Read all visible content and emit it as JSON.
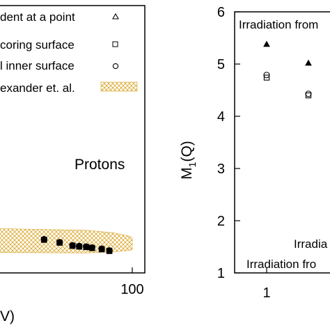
{
  "chart_data": [
    {
      "type": "scatter",
      "title": "",
      "xlabel": "V)",
      "ylabel": "",
      "annotation": "Protons",
      "xticks": [
        "100"
      ],
      "legend": {
        "placement": "top-right",
        "entries": [
          {
            "label": "dent at a point",
            "marker": "triangle"
          },
          {
            "label": "coring surface",
            "marker": "square"
          },
          {
            "label": "l inner surface",
            "marker": "circle"
          },
          {
            "label": "exander et. al.",
            "marker": "hatched-band"
          }
        ]
      },
      "band": {
        "color": "#e0b040",
        "x": [
          1,
          30,
          60,
          90,
          100
        ],
        "lower": [
          0.85,
          0.82,
          0.86,
          0.92,
          0.95
        ],
        "upper": [
          1.85,
          1.75,
          1.65,
          1.52,
          1.45
        ]
      },
      "series": [
        {
          "marker": "circle",
          "x": [
            10,
            15,
            21,
            25,
            30,
            35,
            45,
            55
          ],
          "y": [
            1.38,
            1.26,
            1.13,
            1.1,
            1.08,
            1.04,
            0.99,
            0.92
          ]
        },
        {
          "marker": "square",
          "x": [
            10,
            15,
            21,
            25,
            30,
            35,
            45,
            55
          ],
          "y": [
            1.36,
            1.24,
            1.11,
            1.08,
            1.06,
            1.02,
            0.97,
            0.9
          ]
        }
      ]
    },
    {
      "type": "scatter",
      "title": "",
      "ylabel": "M₁(Q)",
      "ylabel_main": "M",
      "ylabel_sub": "1",
      "ylabel_tail": "(Q)",
      "ylim": [
        1,
        6
      ],
      "yticks": [
        "1",
        "2",
        "3",
        "4",
        "5",
        "6"
      ],
      "xticks": [
        "1"
      ],
      "annotations": [
        "Irradiation from",
        "Irradia",
        "Irradiation fro"
      ],
      "series": [
        {
          "marker": "triangle",
          "x": [
            1,
            2.5
          ],
          "y": [
            5.38,
            5.02
          ]
        },
        {
          "marker": "circle",
          "x": [
            1,
            2.5
          ],
          "y": [
            4.79,
            4.43
          ]
        },
        {
          "marker": "square",
          "x": [
            1,
            2.5
          ],
          "y": [
            4.74,
            4.4
          ]
        }
      ]
    }
  ]
}
